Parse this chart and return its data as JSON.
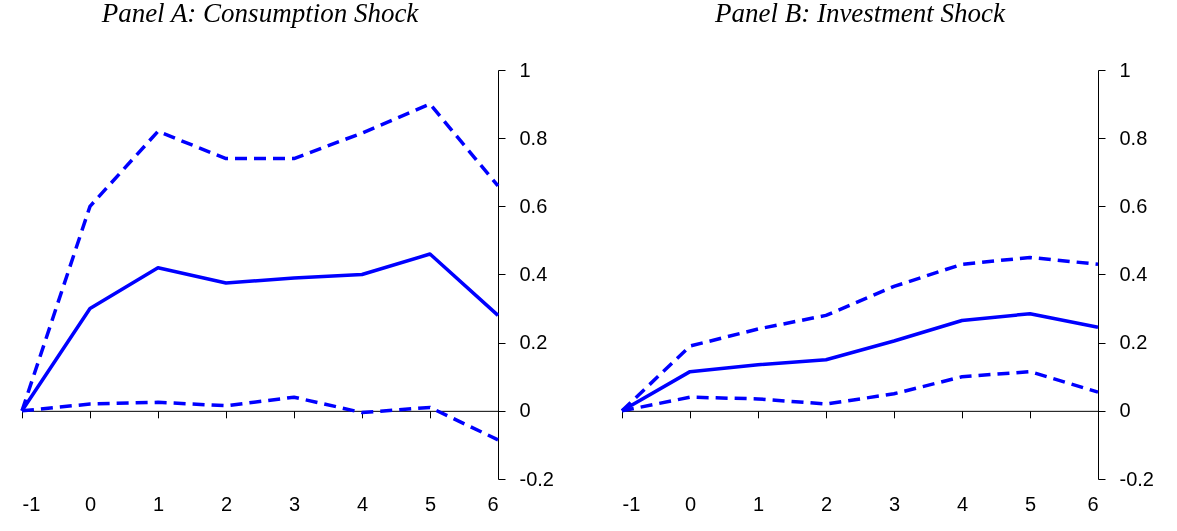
{
  "chart_data": [
    {
      "type": "line",
      "title": "Panel A: Consumption Shock",
      "x": [
        -1,
        0,
        1,
        2,
        3,
        4,
        5,
        6
      ],
      "xlim": [
        -1,
        6
      ],
      "xticks": [
        -1,
        0,
        1,
        2,
        3,
        4,
        5,
        6
      ],
      "ylim": [
        -0.2,
        1
      ],
      "yticks": [
        -0.2,
        0,
        0.2,
        0.4,
        0.6,
        0.8,
        1
      ],
      "marker": "none",
      "series": [
        {
          "color": "#0000ff",
          "line_style": "solid",
          "values": [
            0,
            0.3,
            0.42,
            0.375,
            0.39,
            0.4,
            0.46,
            0.28
          ]
        },
        {
          "color": "#0000ff",
          "line_style": "dashed",
          "values": [
            0,
            0.6,
            0.82,
            0.74,
            0.74,
            0.815,
            0.9,
            0.66
          ]
        },
        {
          "color": "#0000ff",
          "line_style": "dashed",
          "values": [
            0,
            0.02,
            0.025,
            0.015,
            0.04,
            -0.005,
            0.01,
            -0.085
          ]
        }
      ]
    },
    {
      "type": "line",
      "title": "Panel B: Investment Shock",
      "x": [
        -1,
        0,
        1,
        2,
        3,
        4,
        5,
        6
      ],
      "xlim": [
        -1,
        6
      ],
      "xticks": [
        -1,
        0,
        1,
        2,
        3,
        4,
        5,
        6
      ],
      "ylim": [
        -0.2,
        1
      ],
      "yticks": [
        -0.2,
        0,
        0.2,
        0.4,
        0.6,
        0.8,
        1
      ],
      "marker": "none",
      "series": [
        {
          "color": "#0000ff",
          "line_style": "solid",
          "values": [
            0,
            0.115,
            0.135,
            0.15,
            0.205,
            0.265,
            0.285,
            0.245
          ]
        },
        {
          "color": "#0000ff",
          "line_style": "dashed",
          "values": [
            0,
            0.19,
            0.24,
            0.28,
            0.365,
            0.43,
            0.45,
            0.43
          ]
        },
        {
          "color": "#0000ff",
          "line_style": "dashed",
          "values": [
            0,
            0.04,
            0.035,
            0.02,
            0.05,
            0.1,
            0.115,
            0.055
          ]
        }
      ]
    }
  ]
}
